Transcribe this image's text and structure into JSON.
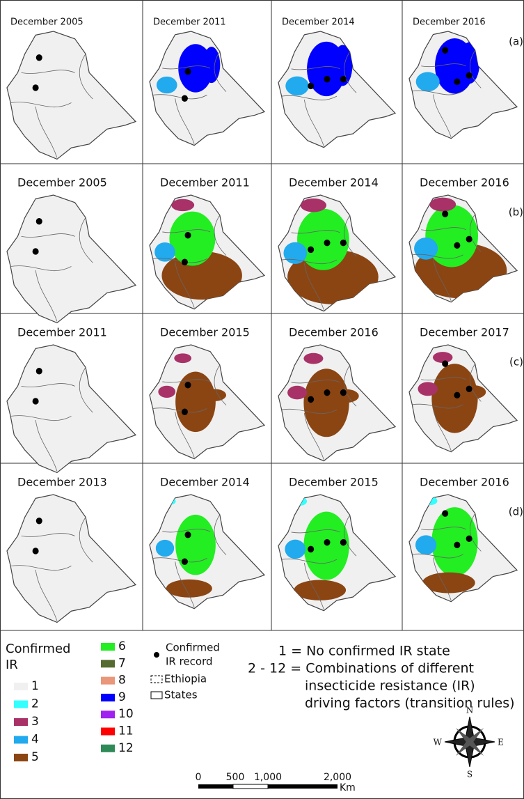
{
  "rows": [
    {
      "tag": "(a)",
      "panels": [
        "December 2005",
        "December 2011",
        "December 2014",
        "December 2016"
      ]
    },
    {
      "tag": "(b)",
      "panels": [
        "December 2005",
        "December 2011",
        "December 2014",
        "December 2016"
      ]
    },
    {
      "tag": "(c)",
      "panels": [
        "December 2011",
        "December 2015",
        "December 2016",
        "December 2017"
      ]
    },
    {
      "tag": "(d)",
      "panels": [
        "December 2013",
        "December 2014",
        "December 2015",
        "December 2016"
      ]
    }
  ],
  "legend": {
    "title_lines": [
      "Confirmed",
      "IR"
    ],
    "classes": [
      {
        "label": "1",
        "color": "#f0f0f0"
      },
      {
        "label": "2",
        "color": "#33ffff"
      },
      {
        "label": "3",
        "color": "#a83268"
      },
      {
        "label": "4",
        "color": "#22aaee"
      },
      {
        "label": "5",
        "color": "#8b4513"
      },
      {
        "label": "6",
        "color": "#22ee22"
      },
      {
        "label": "7",
        "color": "#556b2f"
      },
      {
        "label": "8",
        "color": "#e9967a"
      },
      {
        "label": "9",
        "color": "#0000ff"
      },
      {
        "label": "10",
        "color": "#a020f0"
      },
      {
        "label": "11",
        "color": "#ff0000"
      },
      {
        "label": "12",
        "color": "#2e8b57"
      }
    ],
    "record_lines": [
      "Confirmed",
      "IR record"
    ],
    "ethiopia": "Ethiopia",
    "states": "States"
  },
  "note_lines": [
    "1 = No confirmed IR state",
    "2 - 12 = Combinations of different",
    "insecticide resistance (IR)",
    "driving factors (transition rules)"
  ],
  "scale": {
    "labels": [
      "0",
      "500",
      "1,000",
      "2,000"
    ],
    "unit": "Km"
  },
  "compass": {
    "n": "N",
    "s": "S",
    "e": "E",
    "w": "W"
  }
}
